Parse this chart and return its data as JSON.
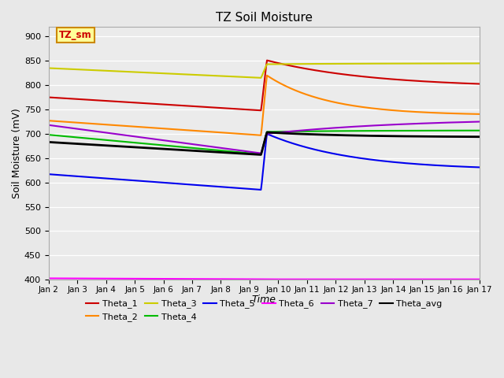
{
  "title": "TZ Soil Moisture",
  "xlabel": "Time",
  "ylabel": "Soil Moisture (mV)",
  "ylim": [
    400,
    920
  ],
  "yticks": [
    400,
    450,
    500,
    550,
    600,
    650,
    700,
    750,
    800,
    850,
    900
  ],
  "fig_bg": "#e8e8e8",
  "plot_bg": "#ebebeb",
  "annotation_text": "TZ_sm",
  "annotation_bg": "#ffff99",
  "annotation_border": "#cc8800",
  "annotation_text_color": "#cc0000",
  "series": {
    "Theta_1": {
      "color": "#cc0000"
    },
    "Theta_2": {
      "color": "#ff8800"
    },
    "Theta_3": {
      "color": "#cccc00"
    },
    "Theta_4": {
      "color": "#00bb00"
    },
    "Theta_5": {
      "color": "#0000ee"
    },
    "Theta_6": {
      "color": "#ff00ff"
    },
    "Theta_7": {
      "color": "#9900cc"
    },
    "Theta_avg": {
      "color": "#000000"
    }
  },
  "x_labels": [
    "Jan 2",
    "Jan 3",
    "Jan 4",
    "Jan 5",
    "Jan 6",
    "Jan 7",
    "Jan 8",
    "Jan 9",
    "Jan 10",
    "Jan 11",
    "Jan 12",
    "Jan 13",
    "Jan 14",
    "Jan 15",
    "Jan 16",
    "Jan 17"
  ]
}
